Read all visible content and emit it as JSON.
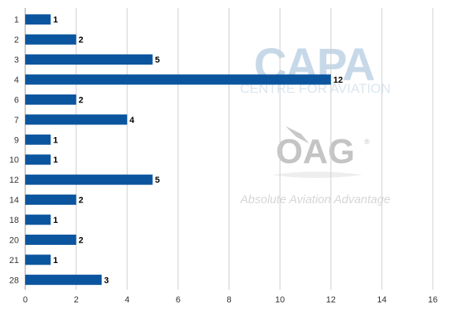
{
  "chart_data": {
    "type": "bar",
    "orientation": "horizontal",
    "categories": [
      "1",
      "2",
      "3",
      "4",
      "6",
      "7",
      "9",
      "10",
      "12",
      "14",
      "18",
      "20",
      "21",
      "28"
    ],
    "values": [
      1,
      2,
      5,
      12,
      2,
      4,
      1,
      1,
      5,
      2,
      1,
      2,
      1,
      3
    ],
    "x_ticks": [
      "0",
      "2",
      "4",
      "6",
      "8",
      "10",
      "12",
      "14",
      "16"
    ],
    "xlim": [
      0,
      16
    ],
    "grid": "vertical",
    "legend": "none",
    "title": "",
    "xlabel": "",
    "ylabel": "",
    "bar_color": "#0b559f",
    "grid_color": "#cfcfcf"
  },
  "watermark": {
    "capa_logo": "CAPA",
    "capa_tagline": "CENTRE FOR AVIATION",
    "oag_logo": "OAG",
    "oag_tagline": "Absolute Aviation Advantage",
    "registered_mark": "®"
  }
}
